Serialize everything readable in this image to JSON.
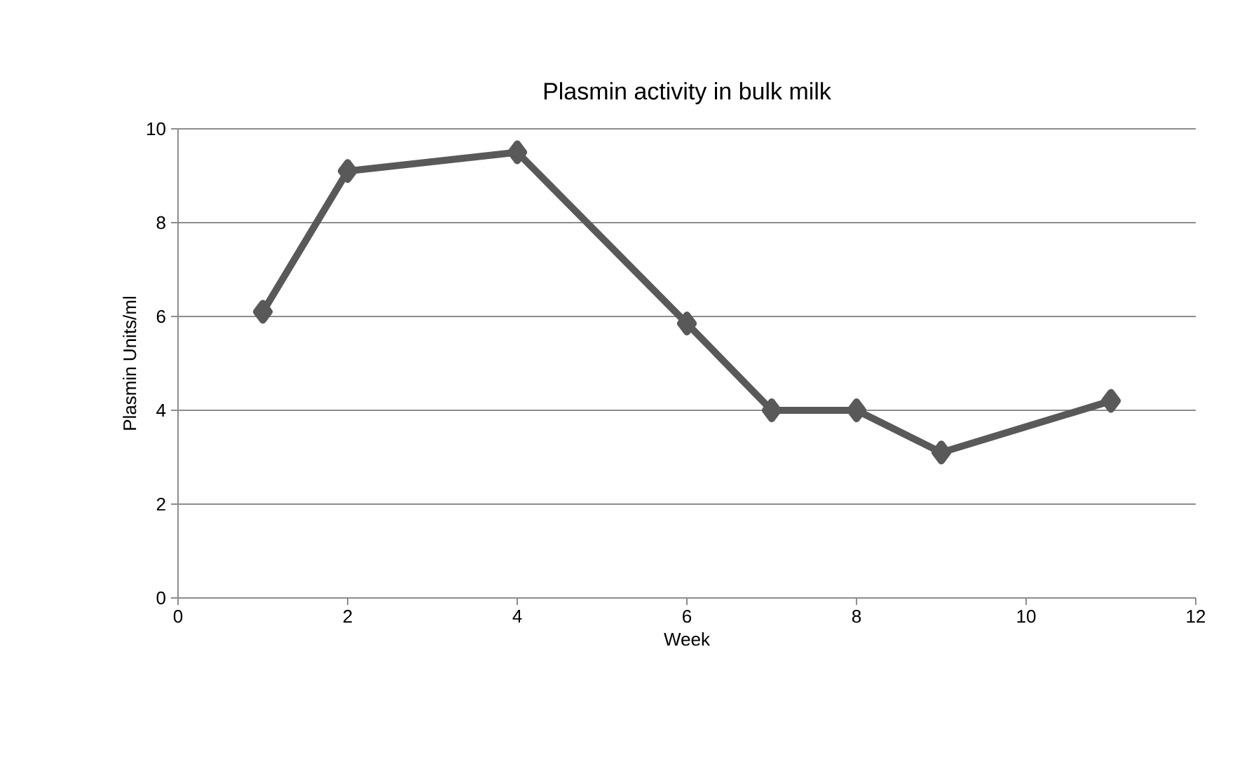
{
  "chart_data": {
    "type": "line",
    "title": "Plasmin activity in bulk milk",
    "xlabel": "Week",
    "ylabel": "Plasmin Units/ml",
    "x": [
      1,
      2,
      4,
      6,
      7,
      8,
      9,
      11
    ],
    "series": [
      {
        "color": "#595959",
        "values": [
          6.1,
          9.1,
          9.5,
          5.85,
          4.0,
          4.0,
          3.1,
          4.2
        ]
      }
    ],
    "xlim": [
      0,
      12
    ],
    "ylim": [
      0,
      10
    ],
    "xticks": [
      0,
      2,
      4,
      6,
      8,
      10,
      12
    ],
    "yticks": [
      0,
      2,
      4,
      6,
      8,
      10
    ],
    "grid": "y",
    "marker": "diamond",
    "line_style": "solid"
  }
}
